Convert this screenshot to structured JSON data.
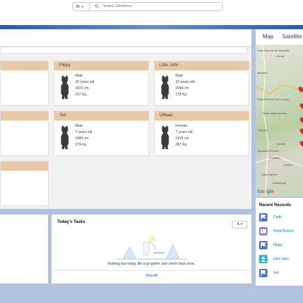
{
  "search": {
    "scope": "All",
    "placeholder": "Search Salesforce"
  },
  "cards": [
    {
      "name": "Flippy",
      "gender": "Male",
      "age": "15 years old",
      "height": "2015 cm",
      "weight": "317 Kg"
    },
    {
      "name": "Little John",
      "gender": "Male",
      "age": "13 years old",
      "height": "2094 cm",
      "weight": "278 Kg"
    },
    {
      "name": "Ted",
      "gender": "Male",
      "age": "7 years old",
      "height": "2086 cm",
      "weight": "279 Kg"
    },
    {
      "name": "Ulfhaer",
      "gender": "Female",
      "age": "7 years old",
      "height": "2105 cm",
      "weight": "287 Kg"
    }
  ],
  "map": {
    "tab_map": "Map",
    "tab_satellite": "Satellite",
    "labels": [
      "Saint-Étienne de Voldaine",
      "Menat",
      "Méaudre",
      "Saint-Étienne-de-Crossey",
      "Saint-Julien-de-Raz",
      "Voreppe",
      "Vercors",
      "Fontaine",
      "Corenc",
      "Saint-Egrève",
      "Sassenage",
      "Seyssinet-Pariset"
    ],
    "brand": "Google"
  },
  "recent_records": {
    "title": "Recent Records",
    "items": [
      {
        "label": "Cindy",
        "icon": "flag-icon",
        "color": "#4b75c9"
      },
      {
        "label": "VictorTournot",
        "icon": "contact-card-icon",
        "color": "#9b7ed6"
      },
      {
        "label": "Flippy",
        "icon": "flag-icon",
        "color": "#4b75c9"
      },
      {
        "label": "User User",
        "icon": "user-icon",
        "color": "#35b2c9"
      },
      {
        "label": "Ted",
        "icon": "flag-icon",
        "color": "#4b75c9"
      }
    ]
  },
  "tasks": {
    "title": "Today's Tasks",
    "filter_label": "⇅ ▾",
    "empty_message": "Nothing due today. Be a go-getter, and check back soon.",
    "view_all": "View All"
  },
  "colors": {
    "card_header": "#e8c9a8",
    "link": "#006dcc",
    "background": "#b0c4df"
  }
}
